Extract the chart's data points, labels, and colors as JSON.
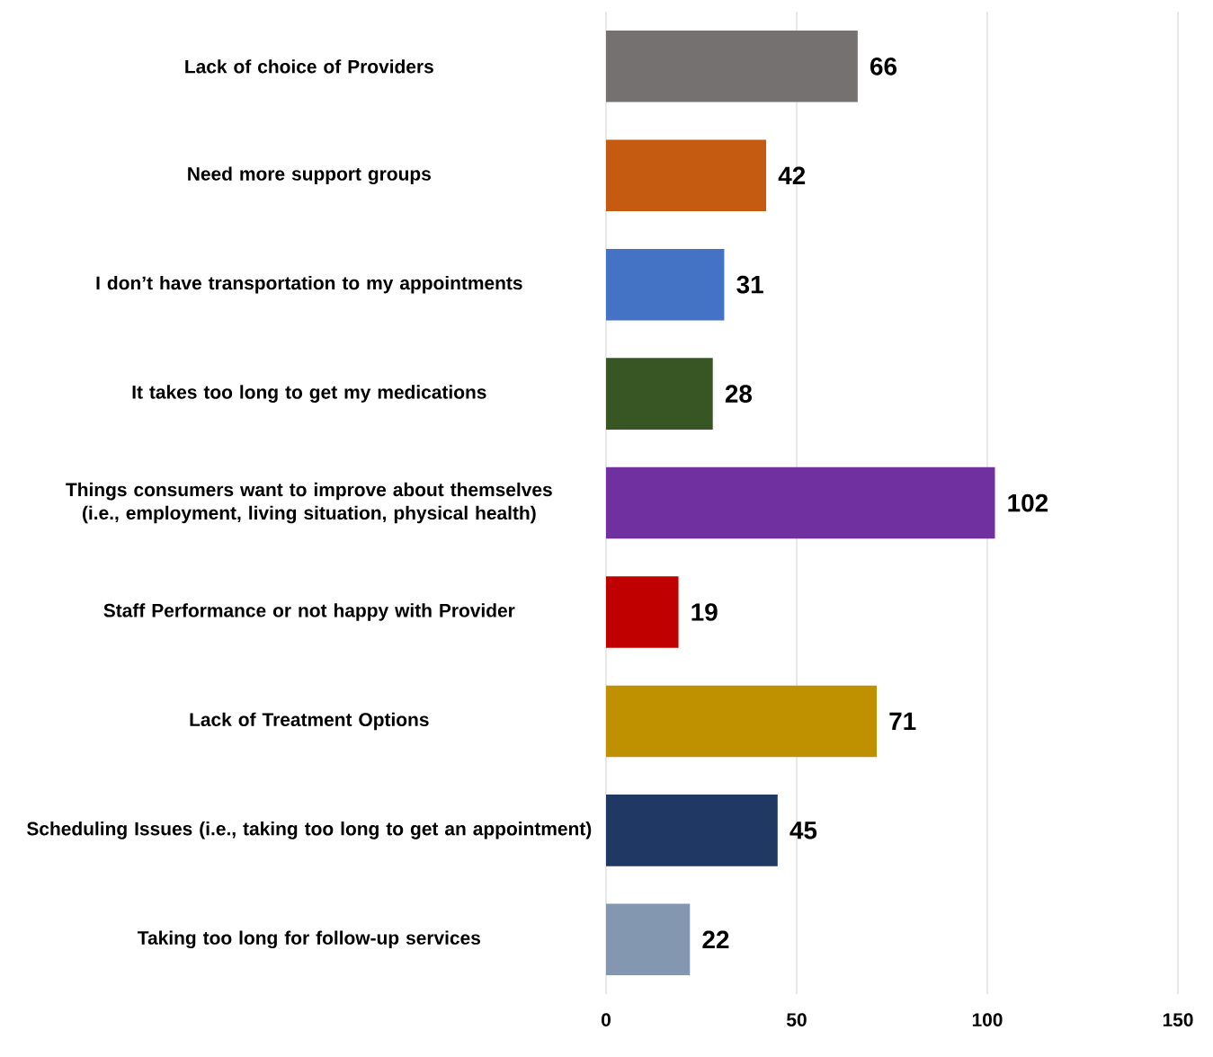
{
  "chart_data": {
    "type": "bar",
    "orientation": "horizontal",
    "categories": [
      "Lack of choice of Providers",
      "Need more support groups",
      "I don’t have transportation to my appointments",
      "It takes too long to get my medications",
      "Things consumers want to improve about themselves (i.e., employment, living situation, physical health)",
      "Staff Performance or not happy with Provider",
      "Lack of Treatment Options",
      "Scheduling Issues (i.e., taking too long to get an appointment)",
      "Taking too long for follow-up services"
    ],
    "values": [
      66,
      42,
      31,
      28,
      102,
      19,
      71,
      45,
      22
    ],
    "colors": [
      "#767171",
      "#c55a11",
      "#4472c4",
      "#375623",
      "#7030a0",
      "#c00000",
      "#bf9000",
      "#203864",
      "#8497b0"
    ],
    "xlim": [
      0,
      150
    ],
    "xticks": [
      0,
      50,
      100,
      150
    ],
    "grid": "x",
    "data_labels": true
  }
}
